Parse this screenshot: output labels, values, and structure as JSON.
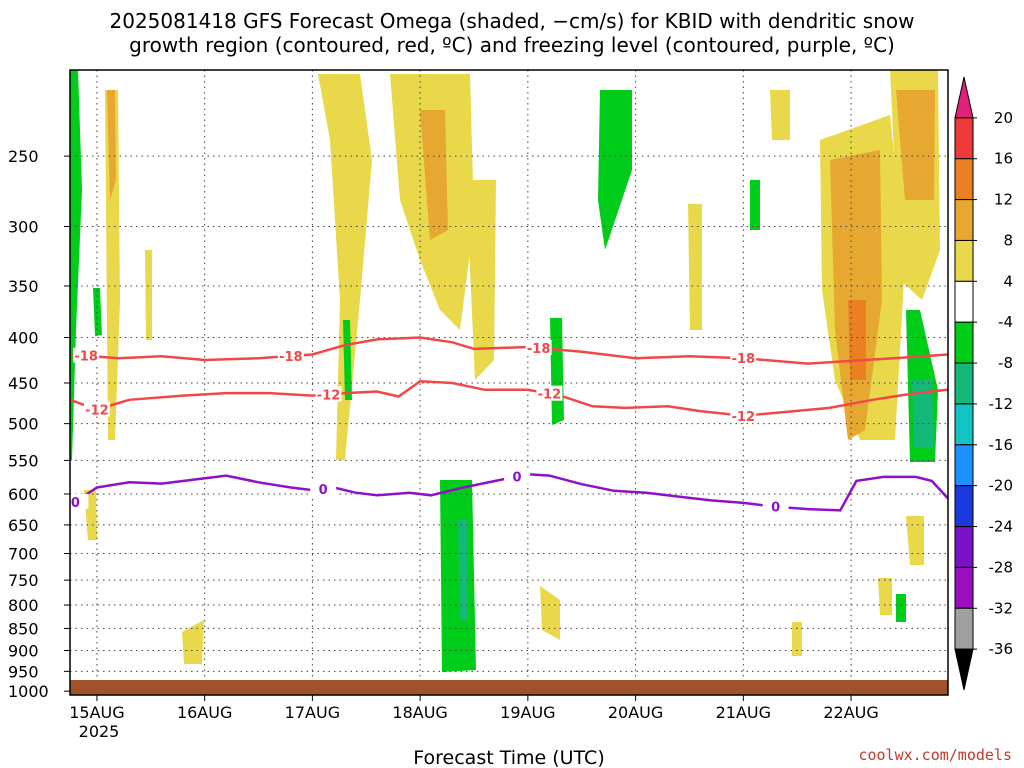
{
  "chart_data": {
    "type": "heatmap",
    "title_line1": "2025081418 GFS Forecast Omega (shaded, −cm/s) for KBID with dendritic snow",
    "title_line2": "growth region (contoured, red, ºC) and freezing level (contoured, purple, ºC)",
    "xlabel": "Forecast Time (UTC)",
    "credit": "coolwx.com/models",
    "x_ticks": [
      "15AUG",
      "16AUG",
      "17AUG",
      "18AUG",
      "19AUG",
      "20AUG",
      "21AUG",
      "22AUG"
    ],
    "x_year": "2025",
    "x_range": [
      -0.25,
      7.9
    ],
    "y_ticks": [
      250,
      300,
      350,
      400,
      450,
      500,
      550,
      600,
      650,
      700,
      750,
      800,
      850,
      900,
      950,
      1000
    ],
    "y_range_hpa": [
      200,
      1010
    ],
    "grid": true,
    "colorbar": {
      "labels": [
        "20",
        "16",
        "12",
        "8",
        "4",
        "-4",
        "-8",
        "-12",
        "-16",
        "-20",
        "-24",
        "-28",
        "-32",
        "-36"
      ],
      "colors": [
        "#e0207a",
        "#f03a3a",
        "#ea8022",
        "#e6a830",
        "#e8d84a",
        "#ffffff",
        "#00cc1a",
        "#14b878",
        "#12c4c4",
        "#1e90ff",
        "#1a3ae0",
        "#7a10c8",
        "#9a10c0",
        "#a0a0a0",
        "#000000"
      ]
    },
    "contours": [
      {
        "label": "-18",
        "color": "#f04848",
        "points": [
          [
            -0.25,
            418
          ],
          [
            0.2,
            422
          ],
          [
            0.6,
            420
          ],
          [
            1.0,
            424
          ],
          [
            1.5,
            422
          ],
          [
            2.0,
            418
          ],
          [
            2.3,
            408
          ],
          [
            2.6,
            402
          ],
          [
            3.0,
            400
          ],
          [
            3.3,
            405
          ],
          [
            3.5,
            412
          ],
          [
            4.0,
            410
          ],
          [
            4.5,
            415
          ],
          [
            5.0,
            422
          ],
          [
            5.5,
            420
          ],
          [
            6.0,
            422
          ],
          [
            6.2,
            424
          ],
          [
            6.6,
            428
          ],
          [
            7.0,
            425
          ],
          [
            7.4,
            422
          ],
          [
            7.9,
            418
          ]
        ],
        "label_x": [
          -0.1,
          1.8,
          4.1,
          6.0
        ]
      },
      {
        "label": "-12",
        "color": "#f04848",
        "points": [
          [
            -0.25,
            470
          ],
          [
            0.0,
            482
          ],
          [
            0.3,
            470
          ],
          [
            0.8,
            465
          ],
          [
            1.2,
            462
          ],
          [
            1.6,
            462
          ],
          [
            2.0,
            465
          ],
          [
            2.3,
            462
          ],
          [
            2.6,
            460
          ],
          [
            2.8,
            466
          ],
          [
            3.0,
            448
          ],
          [
            3.3,
            450
          ],
          [
            3.6,
            458
          ],
          [
            4.0,
            458
          ],
          [
            4.3,
            465
          ],
          [
            4.6,
            478
          ],
          [
            4.9,
            480
          ],
          [
            5.3,
            478
          ],
          [
            5.6,
            484
          ],
          [
            6.0,
            490
          ],
          [
            6.4,
            485
          ],
          [
            6.8,
            480
          ],
          [
            7.2,
            470
          ],
          [
            7.6,
            462
          ],
          [
            7.9,
            458
          ]
        ],
        "label_x": [
          0.0,
          2.15,
          4.2,
          6.0
        ]
      },
      {
        "label": "0",
        "color": "#9010c8",
        "points": [
          [
            -0.25,
            618
          ],
          [
            0.0,
            590
          ],
          [
            0.3,
            582
          ],
          [
            0.6,
            584
          ],
          [
            0.9,
            578
          ],
          [
            1.2,
            572
          ],
          [
            1.5,
            582
          ],
          [
            1.8,
            590
          ],
          [
            2.0,
            594
          ],
          [
            2.2,
            590
          ],
          [
            2.4,
            598
          ],
          [
            2.6,
            602
          ],
          [
            2.9,
            598
          ],
          [
            3.1,
            602
          ],
          [
            3.4,
            590
          ],
          [
            3.7,
            580
          ],
          [
            4.0,
            570
          ],
          [
            4.2,
            572
          ],
          [
            4.5,
            585
          ],
          [
            4.8,
            595
          ],
          [
            5.1,
            598
          ],
          [
            5.4,
            604
          ],
          [
            5.7,
            610
          ],
          [
            6.0,
            614
          ],
          [
            6.3,
            620
          ],
          [
            6.6,
            624
          ],
          [
            6.9,
            626
          ],
          [
            7.05,
            580
          ],
          [
            7.3,
            574
          ],
          [
            7.6,
            574
          ],
          [
            7.75,
            580
          ],
          [
            7.9,
            607
          ]
        ],
        "label_x": [
          -0.2,
          2.1,
          3.9,
          6.3
        ]
      }
    ]
  }
}
